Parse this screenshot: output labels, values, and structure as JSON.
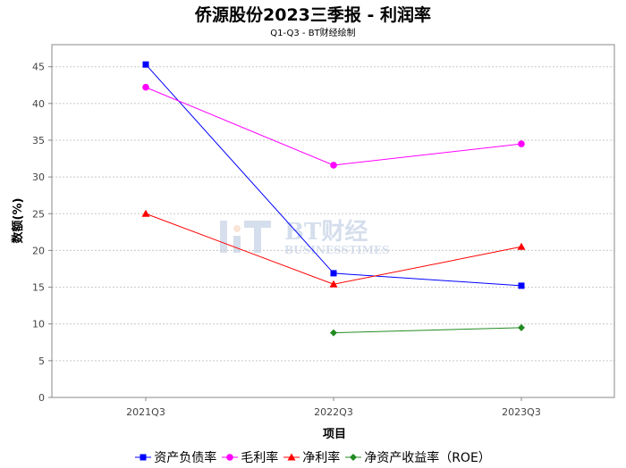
{
  "chart_data": {
    "type": "line",
    "title": "侨源股份2023三季报 - 利润率",
    "subtitle": "Q1-Q3 - BT财经绘制",
    "xlabel": "项目",
    "ylabel": "数额(%)",
    "categories": [
      "2021Q3",
      "2022Q3",
      "2023Q3"
    ],
    "ylim": [
      0,
      48
    ],
    "yticks": [
      0,
      5,
      10,
      15,
      20,
      25,
      30,
      35,
      40,
      45
    ],
    "grid": true,
    "legend_position": "bottom",
    "watermark": "BT财经 BUSINESSTIMES",
    "series": [
      {
        "name": "资产负债率",
        "color": "#0000ff",
        "marker": "square",
        "values": [
          45.3,
          16.9,
          15.2
        ]
      },
      {
        "name": "毛利率",
        "color": "#ff00ff",
        "marker": "circle",
        "values": [
          42.2,
          31.6,
          34.5
        ]
      },
      {
        "name": "净利率",
        "color": "#ff0000",
        "marker": "triangle",
        "values": [
          25.0,
          15.4,
          20.5
        ]
      },
      {
        "name": "净资产收益率（ROE）",
        "color": "#228b22",
        "marker": "diamond",
        "values": [
          null,
          8.8,
          9.5
        ]
      }
    ]
  }
}
